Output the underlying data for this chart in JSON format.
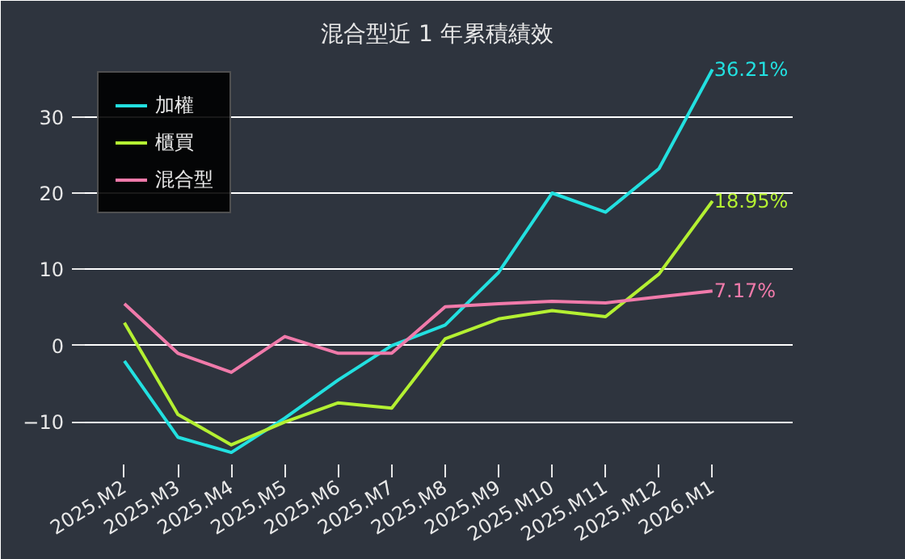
{
  "chart_data": {
    "type": "line",
    "title": "混合型近 1 年累積績效",
    "categories": [
      "2025.M2",
      "2025.M3",
      "2025.M4",
      "2025.M5",
      "2025.M6",
      "2025.M7",
      "2025.M8",
      "2025.M9",
      "2025.M10",
      "2025.M11",
      "2025.M12",
      "2026.M1"
    ],
    "series": [
      {
        "name": "加權",
        "color": "#22e0e0",
        "values": [
          -2,
          -12,
          -14,
          -9.5,
          -4.5,
          0,
          2.7,
          9.6,
          20,
          17.5,
          23.2,
          36.21
        ],
        "value_labels": [
          null,
          null,
          null,
          null,
          null,
          null,
          null,
          null,
          null,
          null,
          null,
          "36.21%"
        ]
      },
      {
        "name": "櫃買",
        "color": "#b4f032",
        "values": [
          3,
          -9,
          -13,
          -10,
          -7.5,
          -8.2,
          0.9,
          3.5,
          4.6,
          3.8,
          9.4,
          18.95
        ],
        "value_labels": [
          null,
          null,
          null,
          null,
          null,
          null,
          null,
          null,
          null,
          null,
          null,
          "18.95%"
        ]
      },
      {
        "name": "混合型",
        "color": "#f07aaa",
        "values": [
          5.5,
          -1,
          -3.5,
          1.2,
          -1,
          -1,
          5.1,
          5.5,
          5.8,
          5.6,
          6.4,
          7.17
        ],
        "value_labels": [
          null,
          null,
          null,
          null,
          null,
          null,
          null,
          null,
          null,
          null,
          null,
          "7.17%"
        ]
      }
    ],
    "ylim": [
      -16,
      38
    ],
    "yticks": [
      -10,
      0,
      10,
      20,
      30
    ],
    "grid": "y",
    "legend": "top left"
  }
}
